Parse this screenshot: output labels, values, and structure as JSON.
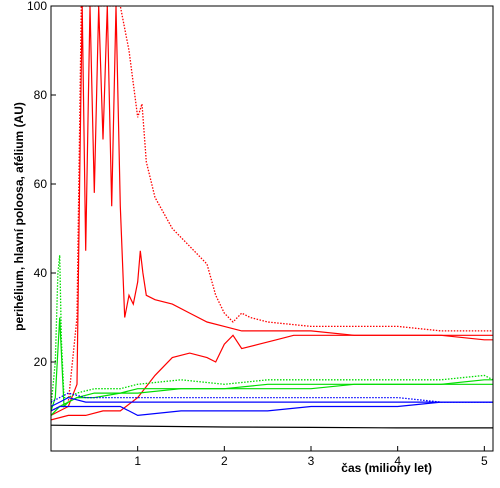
{
  "chart_data": {
    "type": "line",
    "title": "",
    "xlabel": "čas (miliony let)",
    "ylabel": "perihélium, hlavní poloosa, afélium (AU)",
    "xlim": [
      0,
      5.1
    ],
    "ylim": [
      0,
      100
    ],
    "x_ticks": [
      1,
      2,
      3,
      4,
      5
    ],
    "y_ticks": [
      20,
      40,
      60,
      80,
      100
    ],
    "grid": false,
    "legend": "none",
    "series": [
      {
        "color": "#ff0000",
        "style": "dotted",
        "x": [
          0,
          0.1,
          0.2,
          0.3,
          0.35,
          0.4,
          0.45,
          0.5,
          0.6,
          0.7,
          0.8,
          0.9,
          1.0,
          1.05,
          1.1,
          1.2,
          1.4,
          1.6,
          1.8,
          1.9,
          2.0,
          2.1,
          2.2,
          2.3,
          2.5,
          3.0,
          3.5,
          4.0,
          4.5,
          5.0,
          5.1
        ],
        "y": [
          9,
          10,
          11,
          30,
          100,
          100,
          100,
          100,
          100,
          100,
          100,
          90,
          75,
          78,
          65,
          57,
          50,
          46,
          42,
          35,
          31,
          29,
          31,
          30,
          29,
          28,
          28,
          28,
          27,
          27,
          27
        ]
      },
      {
        "color": "#ff0000",
        "style": "solid",
        "x": [
          0,
          0.1,
          0.2,
          0.3,
          0.33,
          0.36,
          0.4,
          0.45,
          0.5,
          0.55,
          0.6,
          0.65,
          0.7,
          0.75,
          0.8,
          0.85,
          0.9,
          0.95,
          1.0,
          1.03,
          1.06,
          1.1,
          1.2,
          1.4,
          1.6,
          1.8,
          2.0,
          2.2,
          2.5,
          3.0,
          3.5,
          4.0,
          4.5,
          5.0,
          5.1
        ],
        "y": [
          8,
          9,
          10,
          15,
          60,
          100,
          45,
          100,
          58,
          100,
          70,
          100,
          55,
          100,
          55,
          30,
          35,
          33,
          38,
          45,
          40,
          35,
          34,
          33,
          31,
          29,
          28,
          27,
          27,
          27,
          26,
          26,
          26,
          26,
          26
        ]
      },
      {
        "color": "#ff0000",
        "style": "solid",
        "x": [
          0,
          0.2,
          0.4,
          0.6,
          0.8,
          1.0,
          1.2,
          1.4,
          1.6,
          1.8,
          1.9,
          2.0,
          2.1,
          2.2,
          2.4,
          2.6,
          2.8,
          3.0,
          3.5,
          4.0,
          4.5,
          5.0,
          5.1
        ],
        "y": [
          7,
          8,
          8,
          9,
          9,
          12,
          17,
          21,
          22,
          21,
          20,
          24,
          26,
          23,
          24,
          25,
          26,
          26,
          26,
          26,
          26,
          25,
          25
        ]
      },
      {
        "color": "#00dd00",
        "style": "dotted",
        "x": [
          0,
          0.05,
          0.08,
          0.1,
          0.12,
          0.15,
          0.2,
          0.3,
          0.5,
          0.8,
          1.0,
          1.5,
          2.0,
          2.5,
          3.0,
          3.5,
          4.0,
          4.5,
          5.0,
          5.1
        ],
        "y": [
          10,
          20,
          40,
          44,
          25,
          12,
          12,
          13,
          14,
          14,
          15,
          16,
          15,
          16,
          16,
          16,
          16,
          16,
          17,
          16
        ]
      },
      {
        "color": "#00dd00",
        "style": "solid",
        "x": [
          0,
          0.05,
          0.1,
          0.15,
          0.2,
          0.3,
          0.5,
          0.8,
          1.0,
          1.5,
          2.0,
          2.5,
          3.0,
          3.5,
          4.0,
          4.5,
          5.0,
          5.1
        ],
        "y": [
          9,
          12,
          30,
          10,
          11,
          12,
          13,
          13,
          14,
          14,
          14,
          15,
          15,
          15,
          15,
          15,
          16,
          16
        ]
      },
      {
        "color": "#00dd00",
        "style": "solid",
        "x": [
          0,
          0.1,
          0.2,
          0.3,
          0.5,
          0.8,
          1.0,
          1.5,
          2.0,
          2.5,
          3.0,
          3.5,
          4.0,
          4.5,
          5.0,
          5.1
        ],
        "y": [
          8,
          10,
          11,
          12,
          12,
          13,
          13,
          14,
          14,
          14,
          14,
          15,
          15,
          15,
          15,
          15
        ]
      },
      {
        "color": "#0000ff",
        "style": "dotted",
        "x": [
          0,
          0.1,
          0.2,
          0.4,
          0.6,
          0.8,
          1.0,
          1.5,
          2.0,
          2.5,
          3.0,
          3.5,
          4.0,
          4.5,
          5.0,
          5.1
        ],
        "y": [
          11,
          12,
          13,
          12,
          12,
          12,
          12,
          12,
          12,
          12,
          12,
          12,
          12,
          11,
          11,
          11
        ]
      },
      {
        "color": "#0000ff",
        "style": "solid",
        "x": [
          0,
          0.1,
          0.2,
          0.4,
          0.6,
          0.8,
          1.0,
          1.5,
          2.0,
          2.5,
          3.0,
          3.5,
          4.0,
          4.5,
          5.0,
          5.1
        ],
        "y": [
          10,
          11,
          12,
          11,
          11,
          11,
          11,
          11,
          11,
          11,
          11,
          11,
          11,
          11,
          11,
          11
        ]
      },
      {
        "color": "#0000ff",
        "style": "solid",
        "x": [
          0,
          0.1,
          0.2,
          0.4,
          0.6,
          0.8,
          0.9,
          1.0,
          1.5,
          2.0,
          2.5,
          3.0,
          3.5,
          4.0,
          4.5,
          5.0,
          5.1
        ],
        "y": [
          9,
          10,
          10,
          10,
          10,
          10,
          9,
          8,
          9,
          9,
          9,
          10,
          10,
          10,
          11,
          11,
          11
        ]
      },
      {
        "color": "#000000",
        "style": "solid",
        "x": [
          0,
          1,
          2,
          3,
          4,
          5,
          5.1
        ],
        "y": [
          5.8,
          5.6,
          5.4,
          5.3,
          5.2,
          5.2,
          5.2
        ]
      }
    ]
  }
}
